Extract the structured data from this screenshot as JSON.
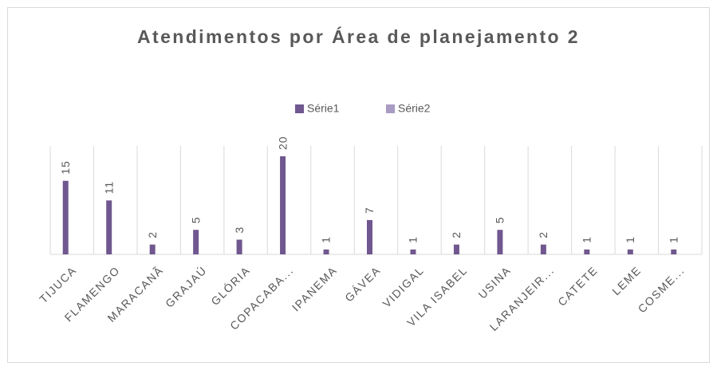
{
  "chart_data": {
    "type": "bar",
    "title": "Atendimentos por Área de planejamento 2",
    "categories": [
      "TIJUCA",
      "FLAMENGO",
      "MARACANÃ",
      "GRAJAÚ",
      "GLÓRIA",
      "COPACABA...",
      "IPANEMA",
      "GÁVEA",
      "VIDIGAL",
      "VILA ISABEL",
      "USINA",
      "LARANJEIR...",
      "CATETE",
      "LEME",
      "COSME..."
    ],
    "series": [
      {
        "name": "Série1",
        "color": "#70578f",
        "values": [
          15,
          11,
          2,
          5,
          3,
          20,
          1,
          7,
          1,
          2,
          5,
          2,
          1,
          1,
          1
        ]
      },
      {
        "name": "Série2",
        "color": "#a99bc3",
        "values": [
          null,
          null,
          null,
          null,
          null,
          null,
          null,
          null,
          null,
          null,
          null,
          null,
          null,
          null,
          null
        ]
      }
    ],
    "legend": "top",
    "grid": true
  }
}
